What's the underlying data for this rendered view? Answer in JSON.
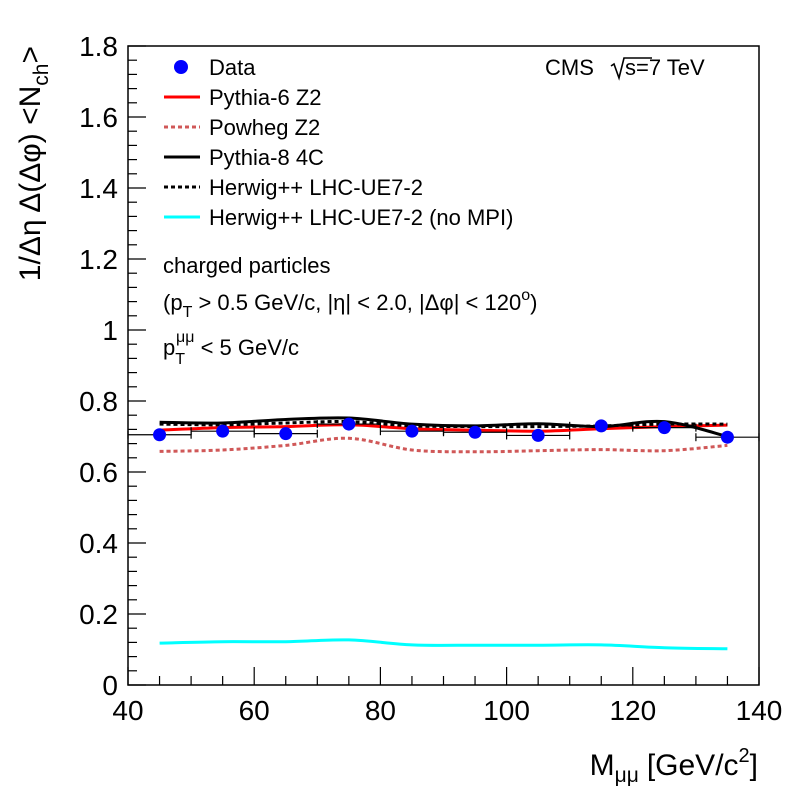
{
  "chart_data": {
    "type": "line",
    "title": "",
    "xlabel": "M",
    "xlabel_sub": "μμ",
    "xlabel_unit": "[GeV/c",
    "xlabel_unit_sup": "2",
    "xlabel_unit_close": "]",
    "ylabel_main": "1/Δη Δ(Δφ) <N",
    "ylabel_sub": "ch",
    "ylabel_close": ">",
    "xlim": [
      40,
      140
    ],
    "ylim": [
      0,
      1.8
    ],
    "x_ticks": [
      40,
      60,
      80,
      100,
      120,
      140
    ],
    "x_tick_labels": [
      "40",
      "60",
      "80",
      "100",
      "120",
      "140"
    ],
    "y_ticks": [
      0,
      0.2,
      0.4,
      0.6,
      0.8,
      1,
      1.2,
      1.4,
      1.6,
      1.8
    ],
    "y_tick_labels": [
      "0",
      "0.2",
      "0.4",
      "0.6",
      "0.8",
      "1",
      "1.2",
      "1.4",
      "1.6",
      "1.8"
    ],
    "experiment_label": "CMS",
    "energy_label": "s=7 TeV",
    "annotations": {
      "line1": "charged particles",
      "line2_a": "(p",
      "line2_sub": "T",
      "line2_b": " > 0.5 GeV/c, |η| < 2.0, |Δφ| < 120",
      "line2_sup": "o",
      "line2_c": ")",
      "line3_a": "p",
      "line3_sub": "T",
      "line3_sup": "μμ",
      "line3_b": " < 5 GeV/c"
    },
    "data_points": {
      "name": "Data",
      "color": "#0000ff",
      "x": [
        45,
        55,
        65,
        75,
        85,
        95,
        105,
        115,
        125,
        135
      ],
      "y": [
        0.705,
        0.715,
        0.708,
        0.735,
        0.715,
        0.712,
        0.703,
        0.73,
        0.725,
        0.698
      ],
      "xerr": [
        5,
        5,
        5,
        5,
        5,
        5,
        5,
        5,
        5,
        5
      ],
      "yerr": [
        0.006,
        0.006,
        0.006,
        0.008,
        0.006,
        0.006,
        0.006,
        0.008,
        0.012,
        0.01
      ]
    },
    "series": [
      {
        "name": "Pythia-6 Z2",
        "color": "#ff0000",
        "dash": "solid",
        "x": [
          45,
          55,
          65,
          75,
          85,
          95,
          105,
          115,
          125,
          135
        ],
        "y": [
          0.718,
          0.725,
          0.728,
          0.733,
          0.722,
          0.718,
          0.715,
          0.722,
          0.728,
          0.732
        ]
      },
      {
        "name": "Powheg Z2",
        "color": "#d05858",
        "dash": "dotted",
        "x": [
          45,
          55,
          65,
          75,
          85,
          95,
          105,
          115,
          125,
          135
        ],
        "y": [
          0.658,
          0.662,
          0.675,
          0.695,
          0.662,
          0.657,
          0.66,
          0.663,
          0.66,
          0.675
        ]
      },
      {
        "name": "Pythia-8 4C",
        "color": "#000000",
        "dash": "solid",
        "x": [
          45,
          55,
          65,
          75,
          85,
          95,
          105,
          115,
          125,
          135
        ],
        "y": [
          0.74,
          0.738,
          0.748,
          0.752,
          0.735,
          0.73,
          0.736,
          0.728,
          0.742,
          0.7
        ]
      },
      {
        "name": "Herwig++ LHC-UE7-2",
        "color": "#000000",
        "dash": "dotted",
        "x": [
          45,
          55,
          65,
          75,
          85,
          95,
          105,
          115,
          125,
          135
        ],
        "y": [
          0.735,
          0.733,
          0.738,
          0.742,
          0.73,
          0.728,
          0.728,
          0.73,
          0.735,
          0.735
        ]
      },
      {
        "name": "Herwig++ LHC-UE7-2 (no MPI)",
        "color": "#00ffff",
        "dash": "solid",
        "x": [
          45,
          55,
          65,
          75,
          85,
          95,
          105,
          115,
          125,
          135
        ],
        "y": [
          0.118,
          0.122,
          0.122,
          0.127,
          0.113,
          0.112,
          0.112,
          0.113,
          0.105,
          0.102
        ]
      }
    ]
  }
}
